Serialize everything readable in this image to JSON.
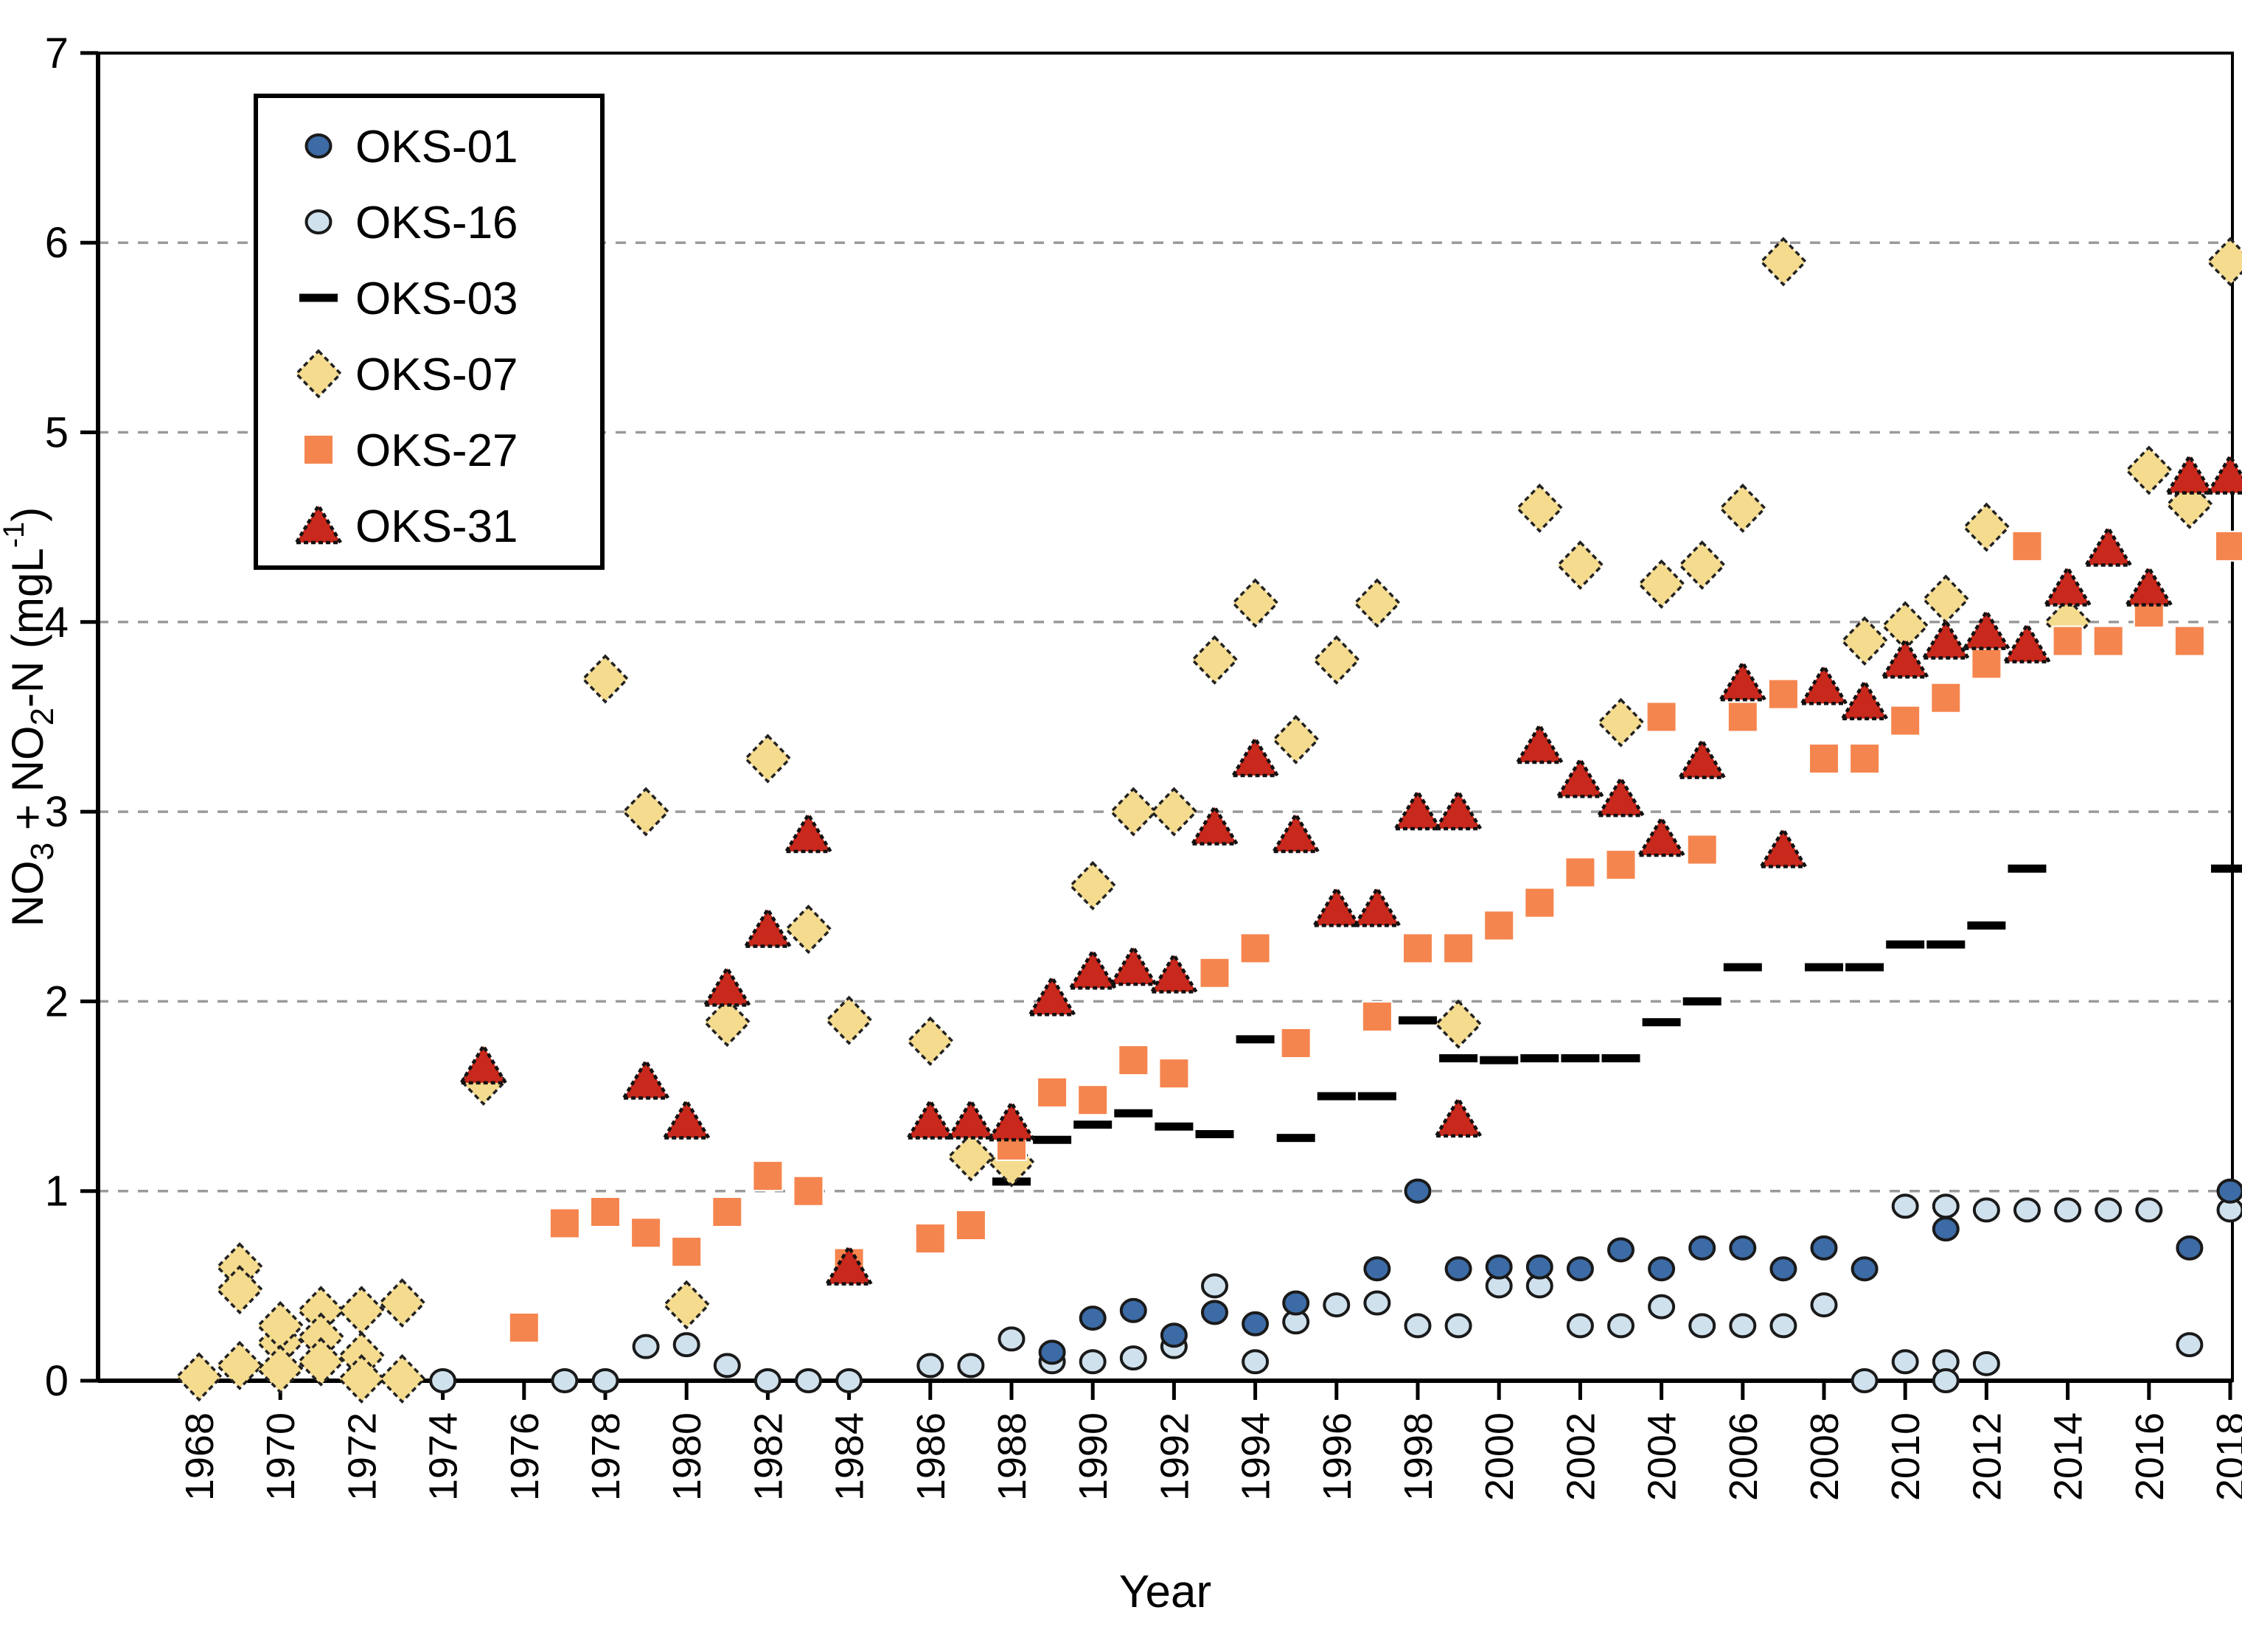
{
  "chart_data": {
    "type": "scatter",
    "title": "",
    "xlabel": "Year",
    "ylabel_parts": [
      "NO",
      "3",
      " + NO",
      "2",
      "-N (mgL",
      "-1",
      ")"
    ],
    "xlim": [
      1968,
      2018
    ],
    "ylim": [
      0,
      7
    ],
    "grid": "horizontal-dashed",
    "legend_position": "top-left",
    "yticks": [
      0,
      1,
      2,
      3,
      4,
      5,
      6,
      7
    ],
    "xticks": [
      1968,
      1970,
      1972,
      1974,
      1976,
      1978,
      1980,
      1982,
      1984,
      1986,
      1988,
      1990,
      1992,
      1994,
      1996,
      1998,
      2000,
      2002,
      2004,
      2006,
      2008,
      2010,
      2012,
      2014,
      2016,
      2018
    ],
    "colors": {
      "axis": "#000000",
      "grid": "#9a9a9a",
      "oks01": "#3c6ba6",
      "oks16": "#cfe1ed",
      "oks03": "#000000",
      "oks07": "#f5db8e",
      "oks27": "#f5854e",
      "oks31": "#c9281c"
    },
    "series": [
      {
        "name": "OKS-16",
        "marker": "circle",
        "color": "#cfe1ed",
        "points": [
          [
            1974,
            0.0
          ],
          [
            1977,
            0.0
          ],
          [
            1978,
            0.0
          ],
          [
            1979,
            0.18
          ],
          [
            1980,
            0.19
          ],
          [
            1981,
            0.08
          ],
          [
            1982,
            0.0
          ],
          [
            1983,
            0.0
          ],
          [
            1984,
            0.0
          ],
          [
            1986,
            0.08
          ],
          [
            1987,
            0.08
          ],
          [
            1988,
            0.22
          ],
          [
            1989,
            0.1
          ],
          [
            1990,
            0.1
          ],
          [
            1991,
            0.12
          ],
          [
            1992,
            0.18
          ],
          [
            1993,
            0.5
          ],
          [
            1994,
            0.1
          ],
          [
            1995,
            0.31
          ],
          [
            1996,
            0.4
          ],
          [
            1997,
            0.41
          ],
          [
            1998,
            0.29
          ],
          [
            1999,
            0.29
          ],
          [
            2000,
            0.5
          ],
          [
            2001,
            0.5
          ],
          [
            2002,
            0.29
          ],
          [
            2003,
            0.29
          ],
          [
            2004,
            0.39
          ],
          [
            2005,
            0.29
          ],
          [
            2006,
            0.29
          ],
          [
            2007,
            0.29
          ],
          [
            2008,
            0.4
          ],
          [
            2009,
            0.0
          ],
          [
            2010,
            0.92
          ],
          [
            2010,
            0.1
          ],
          [
            2011,
            0.92
          ],
          [
            2011,
            0.1
          ],
          [
            2011,
            0.0
          ],
          [
            2012,
            0.9
          ],
          [
            2012,
            0.09
          ],
          [
            2013,
            0.9
          ],
          [
            2014,
            0.9
          ],
          [
            2015,
            0.9
          ],
          [
            2016,
            0.9
          ],
          [
            2017,
            0.19
          ],
          [
            2018,
            0.9
          ]
        ]
      },
      {
        "name": "OKS-01",
        "marker": "circle",
        "color": "#3c6ba6",
        "points": [
          [
            1989,
            0.15
          ],
          [
            1990,
            0.33
          ],
          [
            1991,
            0.37
          ],
          [
            1992,
            0.24
          ],
          [
            1993,
            0.36
          ],
          [
            1994,
            0.3
          ],
          [
            1995,
            0.41
          ],
          [
            1997,
            0.59
          ],
          [
            1998,
            1.0
          ],
          [
            1999,
            0.59
          ],
          [
            2000,
            0.6
          ],
          [
            2001,
            0.6
          ],
          [
            2002,
            0.59
          ],
          [
            2003,
            0.69
          ],
          [
            2004,
            0.59
          ],
          [
            2005,
            0.7
          ],
          [
            2006,
            0.7
          ],
          [
            2007,
            0.59
          ],
          [
            2008,
            0.7
          ],
          [
            2009,
            0.59
          ],
          [
            2011,
            0.8
          ],
          [
            2017,
            0.7
          ],
          [
            2018,
            1.0
          ]
        ]
      },
      {
        "name": "OKS-03",
        "marker": "dash",
        "color": "#000000",
        "points": [
          [
            1988,
            1.05
          ],
          [
            1989,
            1.27
          ],
          [
            1990,
            1.35
          ],
          [
            1991,
            1.41
          ],
          [
            1992,
            1.34
          ],
          [
            1993,
            1.3
          ],
          [
            1994,
            1.8
          ],
          [
            1995,
            1.28
          ],
          [
            1996,
            1.5
          ],
          [
            1997,
            1.5
          ],
          [
            1998,
            1.9
          ],
          [
            1999,
            1.7
          ],
          [
            2000,
            1.69
          ],
          [
            2001,
            1.7
          ],
          [
            2002,
            1.7
          ],
          [
            2003,
            1.7
          ],
          [
            2004,
            1.89
          ],
          [
            2005,
            2.0
          ],
          [
            2006,
            2.18
          ],
          [
            2008,
            2.18
          ],
          [
            2009,
            2.18
          ],
          [
            2010,
            2.3
          ],
          [
            2011,
            2.3
          ],
          [
            2012,
            2.4
          ],
          [
            2013,
            2.7
          ],
          [
            2018,
            2.7
          ]
        ]
      },
      {
        "name": "OKS-07",
        "marker": "diamond",
        "color": "#f5db8e",
        "points": [
          [
            1968,
            0.02
          ],
          [
            1969,
            0.6
          ],
          [
            1969,
            0.48
          ],
          [
            1969,
            0.08
          ],
          [
            1970,
            0.2
          ],
          [
            1970,
            0.29
          ],
          [
            1970,
            0.06
          ],
          [
            1971,
            0.37
          ],
          [
            1971,
            0.23
          ],
          [
            1971,
            0.1
          ],
          [
            1972,
            0.37
          ],
          [
            1972,
            0.13
          ],
          [
            1972,
            0.01
          ],
          [
            1973,
            0.41
          ],
          [
            1973,
            0.01
          ],
          [
            1975,
            1.58
          ],
          [
            1978,
            3.7
          ],
          [
            1979,
            3.0
          ],
          [
            1980,
            0.4
          ],
          [
            1981,
            1.89
          ],
          [
            1982,
            3.28
          ],
          [
            1983,
            2.38
          ],
          [
            1984,
            1.9
          ],
          [
            1986,
            1.79
          ],
          [
            1987,
            1.18
          ],
          [
            1988,
            1.15
          ],
          [
            1990,
            2.61
          ],
          [
            1991,
            3.0
          ],
          [
            1992,
            3.0
          ],
          [
            1993,
            3.8
          ],
          [
            1994,
            4.1
          ],
          [
            1995,
            3.38
          ],
          [
            1996,
            3.8
          ],
          [
            1997,
            4.1
          ],
          [
            1999,
            1.88
          ],
          [
            2001,
            4.6
          ],
          [
            2002,
            4.3
          ],
          [
            2003,
            3.47
          ],
          [
            2004,
            4.2
          ],
          [
            2005,
            4.3
          ],
          [
            2006,
            4.6
          ],
          [
            2007,
            5.9
          ],
          [
            2009,
            3.9
          ],
          [
            2010,
            3.98
          ],
          [
            2011,
            4.12
          ],
          [
            2012,
            4.5
          ],
          [
            2014,
            4.0
          ],
          [
            2016,
            4.8
          ],
          [
            2017,
            4.62
          ],
          [
            2018,
            5.9
          ]
        ]
      },
      {
        "name": "OKS-27",
        "marker": "square",
        "color": "#f5854e",
        "points": [
          [
            1976,
            0.28
          ],
          [
            1977,
            0.83
          ],
          [
            1978,
            0.89
          ],
          [
            1979,
            0.78
          ],
          [
            1980,
            0.68
          ],
          [
            1981,
            0.89
          ],
          [
            1982,
            1.08
          ],
          [
            1983,
            1.0
          ],
          [
            1984,
            0.62
          ],
          [
            1986,
            0.75
          ],
          [
            1987,
            0.82
          ],
          [
            1988,
            1.24
          ],
          [
            1989,
            1.52
          ],
          [
            1990,
            1.48
          ],
          [
            1991,
            1.69
          ],
          [
            1992,
            1.62
          ],
          [
            1993,
            2.15
          ],
          [
            1994,
            2.28
          ],
          [
            1995,
            1.78
          ],
          [
            1997,
            1.92
          ],
          [
            1998,
            2.28
          ],
          [
            1999,
            2.28
          ],
          [
            2000,
            2.4
          ],
          [
            2001,
            2.52
          ],
          [
            2002,
            2.68
          ],
          [
            2003,
            2.72
          ],
          [
            2004,
            3.5
          ],
          [
            2005,
            2.8
          ],
          [
            2006,
            3.5
          ],
          [
            2007,
            3.62
          ],
          [
            2008,
            3.28
          ],
          [
            2009,
            3.28
          ],
          [
            2010,
            3.48
          ],
          [
            2011,
            3.6
          ],
          [
            2012,
            3.78
          ],
          [
            2013,
            4.4
          ],
          [
            2014,
            3.9
          ],
          [
            2015,
            3.9
          ],
          [
            2016,
            4.05
          ],
          [
            2017,
            3.9
          ],
          [
            2018,
            4.4
          ]
        ]
      },
      {
        "name": "OKS-31",
        "marker": "triangle",
        "color": "#c9281c",
        "points": [
          [
            1975,
            1.66
          ],
          [
            1979,
            1.58
          ],
          [
            1980,
            1.37
          ],
          [
            1981,
            2.07
          ],
          [
            1982,
            2.38
          ],
          [
            1983,
            2.88
          ],
          [
            1984,
            0.6
          ],
          [
            1986,
            1.37
          ],
          [
            1987,
            1.37
          ],
          [
            1988,
            1.36
          ],
          [
            1989,
            2.02
          ],
          [
            1990,
            2.16
          ],
          [
            1991,
            2.18
          ],
          [
            1992,
            2.14
          ],
          [
            1993,
            2.92
          ],
          [
            1994,
            3.28
          ],
          [
            1995,
            2.88
          ],
          [
            1996,
            2.49
          ],
          [
            1997,
            2.49
          ],
          [
            1998,
            3.0
          ],
          [
            1999,
            3.0
          ],
          [
            1999,
            1.38
          ],
          [
            2001,
            3.35
          ],
          [
            2002,
            3.17
          ],
          [
            2003,
            3.07
          ],
          [
            2004,
            2.86
          ],
          [
            2005,
            3.27
          ],
          [
            2006,
            3.68
          ],
          [
            2007,
            2.8
          ],
          [
            2008,
            3.66
          ],
          [
            2009,
            3.58
          ],
          [
            2010,
            3.8
          ],
          [
            2011,
            3.9
          ],
          [
            2012,
            3.95
          ],
          [
            2013,
            3.88
          ],
          [
            2014,
            4.18
          ],
          [
            2015,
            4.39
          ],
          [
            2016,
            4.18
          ],
          [
            2017,
            4.77
          ],
          [
            2018,
            4.77
          ]
        ]
      }
    ],
    "legend": [
      {
        "label": "OKS-01",
        "marker": "circle",
        "color": "#3c6ba6"
      },
      {
        "label": "OKS-16",
        "marker": "circle",
        "color": "#cfe1ed"
      },
      {
        "label": "OKS-03",
        "marker": "dash",
        "color": "#000000"
      },
      {
        "label": "OKS-07",
        "marker": "diamond",
        "color": "#f5db8e"
      },
      {
        "label": "OKS-27",
        "marker": "square",
        "color": "#f5854e"
      },
      {
        "label": "OKS-31",
        "marker": "triangle",
        "color": "#c9281c"
      }
    ]
  }
}
